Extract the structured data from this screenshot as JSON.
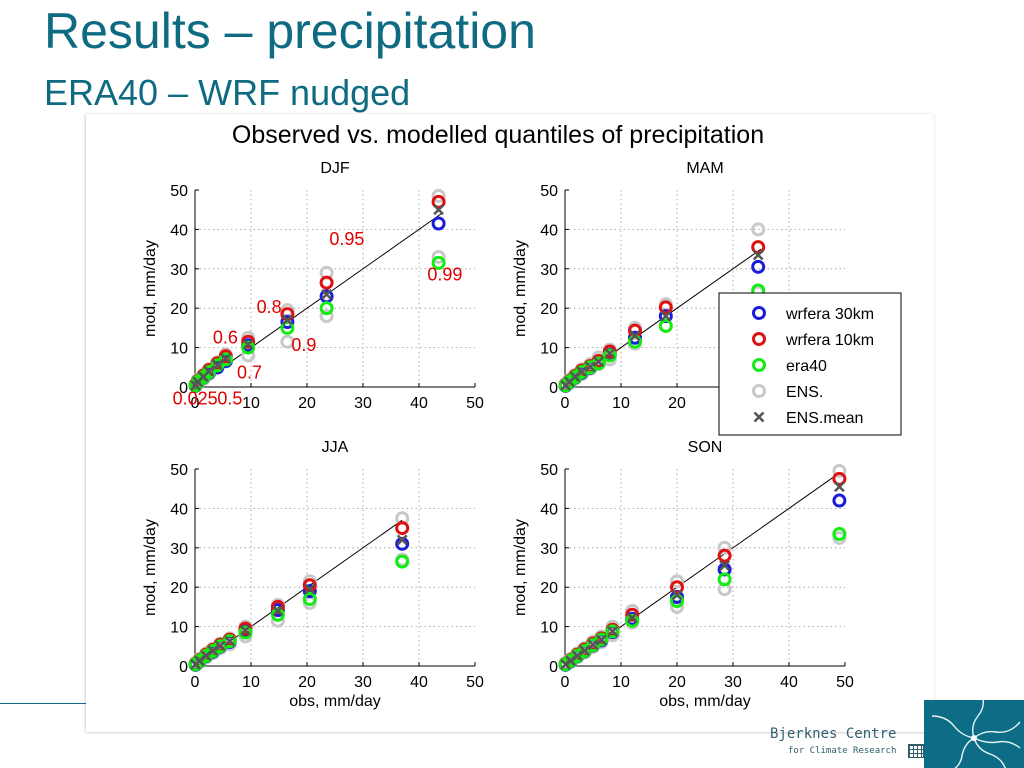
{
  "slide": {
    "title": "Results – precipitation",
    "subtitle": "ERA40 – WRF nudged",
    "logo": {
      "name": "Bjerknes Centre",
      "tagline": "for Climate Research"
    }
  },
  "colors": {
    "title": "#0e6b82",
    "wrfera30": "#1c1cdc",
    "wrfera10": "#e01010",
    "era40": "#10ee10",
    "ens": "#c8c8c8",
    "ensmean": "#555555",
    "annotation": "#e00000"
  },
  "chart_data": [
    {
      "type": "scatter",
      "figure_title": "Observed vs. modelled quantiles of precipitation",
      "title": "DJF",
      "xlabel": "",
      "ylabel": "mod, mm/day",
      "xlim": [
        0,
        50
      ],
      "ylim": [
        0,
        50
      ],
      "xticks": [
        0,
        10,
        20,
        30,
        40,
        50
      ],
      "yticks": [
        0,
        10,
        20,
        30,
        40,
        50
      ],
      "grid": true,
      "obs": [
        0.1,
        0.5,
        1.5,
        2.5,
        4,
        5.5,
        9.5,
        16.5,
        23.5,
        43.5
      ],
      "reference_line": [
        [
          0,
          0
        ],
        [
          44,
          44
        ]
      ],
      "series": [
        {
          "key": "ens",
          "values": [
            [
              0.3,
              1.0,
              2.0,
              3.3,
              4.8,
              6.5,
              8.0,
              11.5,
              18,
              33
            ],
            [
              0.8,
              1.8,
              3.0,
              4.5,
              6.3,
              8.3,
              12.5,
              19.5,
              29,
              48.5
            ]
          ]
        },
        {
          "key": "wrfera30",
          "values": [
            0.3,
            1.2,
            2.4,
            3.6,
            5.0,
            6.6,
            10.6,
            16.5,
            23.0,
            41.5
          ]
        },
        {
          "key": "wrfera10",
          "values": [
            0.5,
            1.5,
            2.9,
            4.3,
            6.0,
            7.8,
            11.5,
            18.5,
            26.5,
            47.0
          ]
        },
        {
          "key": "era40",
          "values": [
            0.4,
            1.3,
            2.5,
            3.8,
            5.5,
            7.0,
            10.0,
            15.0,
            20.0,
            31.5
          ]
        },
        {
          "key": "ensmean",
          "values": [
            0.4,
            1.3,
            2.6,
            4.0,
            5.6,
            7.2,
            10.8,
            17.0,
            23.5,
            45.0
          ]
        }
      ],
      "annotations": [
        {
          "text": "0.025",
          "x": -4,
          "y": -4.5
        },
        {
          "text": "0.5",
          "x": 4,
          "y": -4.5
        },
        {
          "text": "0.6",
          "x": 3.2,
          "y": 11
        },
        {
          "text": "0.7",
          "x": 7.5,
          "y": 2.2
        },
        {
          "text": "0.8",
          "x": 11,
          "y": 18.8
        },
        {
          "text": "0.9",
          "x": 17.2,
          "y": 9.2
        },
        {
          "text": "0.95",
          "x": 24,
          "y": 36
        },
        {
          "text": "0.99",
          "x": 41.5,
          "y": 27
        }
      ]
    },
    {
      "type": "scatter",
      "title": "MAM",
      "xlabel": "",
      "ylabel": "mod, mm/day",
      "xlim": [
        0,
        50
      ],
      "ylim": [
        0,
        50
      ],
      "xticks": [
        0,
        10,
        20,
        30,
        40,
        50
      ],
      "yticks": [
        0,
        10,
        20,
        30,
        40,
        50
      ],
      "grid": true,
      "obs": [
        0.1,
        0.8,
        1.8,
        3.0,
        4.5,
        6,
        8,
        12.5,
        18,
        34.5
      ],
      "reference_line": [
        [
          0,
          0
        ],
        [
          35,
          35
        ]
      ],
      "series": [
        {
          "key": "ens",
          "values": [
            [
              0.3,
              1.0,
              2.1,
              3.3,
              4.6,
              5.8,
              7.0,
              11.0,
              15.5,
              24
            ],
            [
              0.8,
              1.8,
              3.0,
              4.5,
              5.8,
              7.5,
              9.5,
              15.0,
              21,
              40
            ]
          ]
        },
        {
          "key": "wrfera30",
          "values": [
            0.3,
            1.2,
            2.4,
            3.6,
            4.9,
            6.1,
            8.2,
            12.5,
            18,
            30.5
          ]
        },
        {
          "key": "wrfera10",
          "values": [
            0.5,
            1.5,
            2.8,
            4.2,
            5.3,
            6.6,
            9.0,
            14.3,
            20.2,
            35.5
          ]
        },
        {
          "key": "era40",
          "values": [
            0.4,
            1.3,
            2.5,
            3.8,
            5.0,
            6.0,
            8.0,
            11.5,
            15.5,
            24.5
          ]
        },
        {
          "key": "ensmean",
          "values": [
            0.4,
            1.3,
            2.6,
            3.9,
            5.1,
            6.4,
            8.5,
            13.0,
            18.0,
            33.5
          ]
        }
      ],
      "legend": {
        "placement": "right",
        "entries": [
          {
            "key": "wrfera30",
            "label": "wrfera 30km"
          },
          {
            "key": "wrfera10",
            "label": "wrfera 10km"
          },
          {
            "key": "era40",
            "label": "era40"
          },
          {
            "key": "ens",
            "label": "ENS."
          },
          {
            "key": "ensmean",
            "label": "ENS.mean"
          }
        ]
      }
    },
    {
      "type": "scatter",
      "title": "JJA",
      "xlabel": "obs, mm/day",
      "ylabel": "mod, mm/day",
      "xlim": [
        0,
        50
      ],
      "ylim": [
        0,
        50
      ],
      "xticks": [
        0,
        10,
        20,
        30,
        40,
        50
      ],
      "yticks": [
        0,
        10,
        20,
        30,
        40,
        50
      ],
      "grid": true,
      "obs": [
        0.1,
        0.8,
        2,
        3.2,
        4.5,
        6.2,
        9,
        14.8,
        20.5,
        37
      ],
      "reference_line": [
        [
          0,
          0
        ],
        [
          37,
          37
        ]
      ],
      "series": [
        {
          "key": "ens",
          "values": [
            [
              0.3,
              1.0,
              2.2,
              3.3,
              4.5,
              5.5,
              7.5,
              11.5,
              16,
              27
            ],
            [
              0.8,
              1.8,
              3.2,
              4.4,
              5.7,
              7.0,
              10.0,
              15.5,
              21.5,
              37.5
            ]
          ]
        },
        {
          "key": "wrfera30",
          "values": [
            0.3,
            1.2,
            2.5,
            3.6,
            4.9,
            6.1,
            8.8,
            14.2,
            19,
            31
          ]
        },
        {
          "key": "wrfera10",
          "values": [
            0.5,
            1.5,
            2.9,
            4.1,
            5.4,
            6.7,
            9.5,
            15.0,
            20.5,
            35
          ]
        },
        {
          "key": "era40",
          "values": [
            0.4,
            1.3,
            2.6,
            3.8,
            5.0,
            6.3,
            8.5,
            13.0,
            17.0,
            26.5
          ]
        },
        {
          "key": "ensmean",
          "values": [
            0.4,
            1.3,
            2.6,
            3.9,
            5.1,
            6.3,
            9.0,
            14.0,
            19.5,
            32
          ]
        }
      ]
    },
    {
      "type": "scatter",
      "title": "SON",
      "xlabel": "obs, mm/day",
      "ylabel": "mod, mm/day",
      "xlim": [
        0,
        50
      ],
      "ylim": [
        0,
        50
      ],
      "xticks": [
        0,
        10,
        20,
        30,
        40,
        50
      ],
      "yticks": [
        0,
        10,
        20,
        30,
        40,
        50
      ],
      "grid": true,
      "obs": [
        0.1,
        1,
        2.2,
        3.5,
        5,
        6.5,
        8.5,
        12,
        20,
        28.5,
        49
      ],
      "reference_line": [
        [
          0,
          0
        ],
        [
          49,
          49
        ]
      ],
      "series": [
        {
          "key": "ens",
          "values": [
            [
              0.3,
              1.0,
              2.2,
              3.4,
              4.8,
              6.0,
              7.8,
              11.0,
              15.0,
              19.5,
              32.5
            ],
            [
              0.8,
              1.8,
              3.2,
              4.6,
              6.2,
              7.5,
              10.0,
              14.0,
              21.5,
              30.0,
              49.5
            ]
          ]
        },
        {
          "key": "wrfera30",
          "values": [
            0.3,
            1.2,
            2.5,
            3.7,
            5.2,
            6.5,
            8.6,
            12.0,
            17.5,
            24.5,
            42
          ]
        },
        {
          "key": "wrfera10",
          "values": [
            0.5,
            1.5,
            2.9,
            4.2,
            5.7,
            7.0,
            9.2,
            13.0,
            20.0,
            28.0,
            47.5
          ]
        },
        {
          "key": "era40",
          "values": [
            0.4,
            1.3,
            2.6,
            3.8,
            5.3,
            6.7,
            8.8,
            11.5,
            16.5,
            22.0,
            33.5
          ]
        },
        {
          "key": "ensmean",
          "values": [
            0.4,
            1.3,
            2.6,
            3.9,
            5.4,
            6.6,
            8.8,
            12.2,
            18.0,
            25.5,
            45.5
          ]
        }
      ]
    }
  ]
}
